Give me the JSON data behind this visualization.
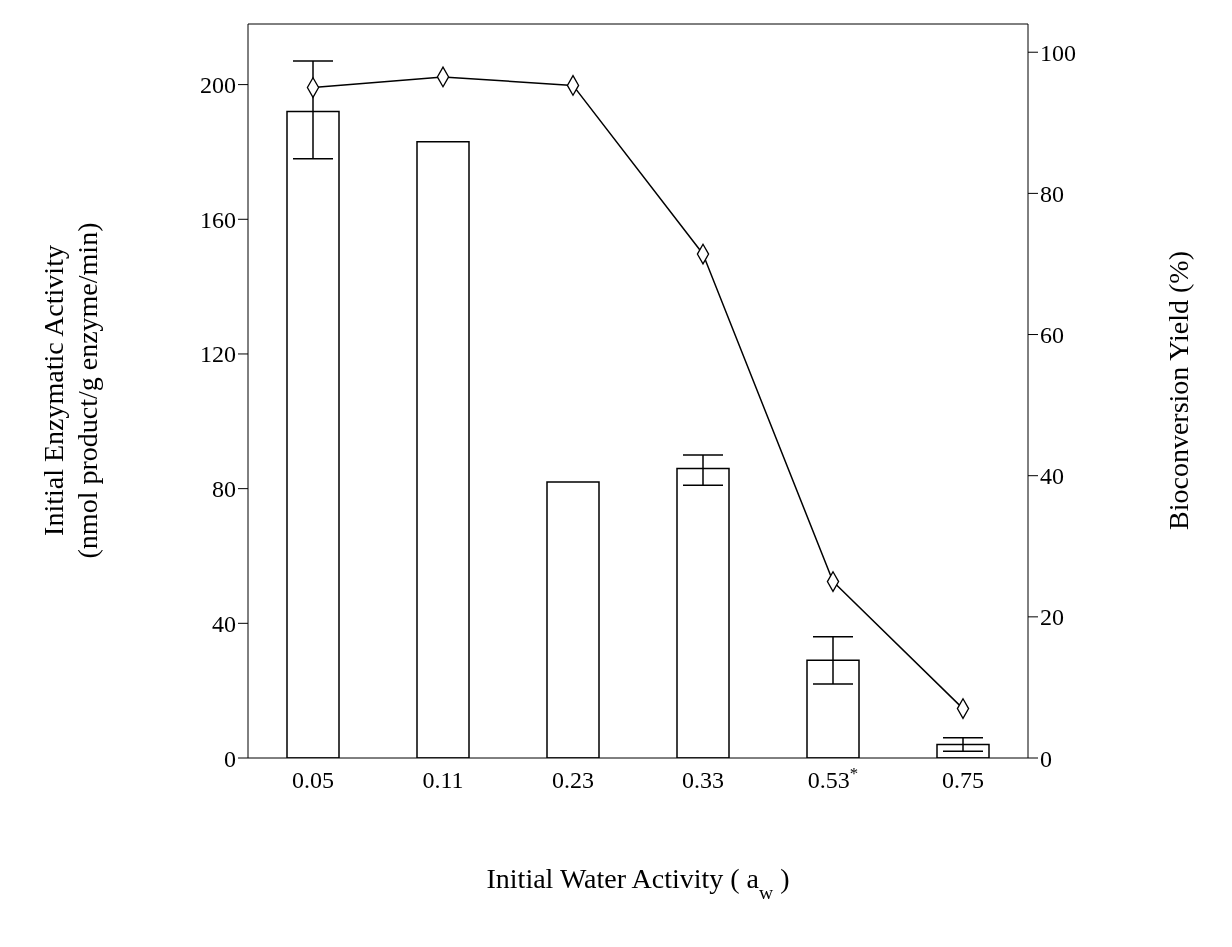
{
  "chart_data": {
    "type": "bar",
    "xlabel": "Initial Water Activity ( a$_{w}$ )",
    "ylabel": "Initial Enzymatic Activity\n(nmol product/g enzyme/min)",
    "y2label": "Bioconversion Yield (%)",
    "categories": [
      "0.05",
      "0.11",
      "0.23",
      "0.33",
      "0.53$^{*}$",
      "0.75"
    ],
    "series": [
      {
        "color": "#ffffff",
        "values": [
          192,
          183,
          82,
          86,
          29,
          4
        ],
        "errors": [
          [
            178,
            207
          ],
          null,
          null,
          [
            81,
            90
          ],
          [
            22,
            36
          ],
          [
            2,
            6
          ]
        ]
      },
      {
        "type": "line",
        "axis": "y2",
        "color": "#000000",
        "values": [
          95,
          96.5,
          95.3,
          71.4,
          25,
          7
        ]
      }
    ],
    "marker": "diamond",
    "line_style": "solid",
    "ylim": [
      0,
      218
    ],
    "yticks": [
      0,
      40,
      80,
      120,
      160,
      200
    ],
    "y2lim": [
      0,
      104
    ],
    "y2ticks": [
      0,
      20,
      40,
      60,
      80,
      100
    ]
  }
}
